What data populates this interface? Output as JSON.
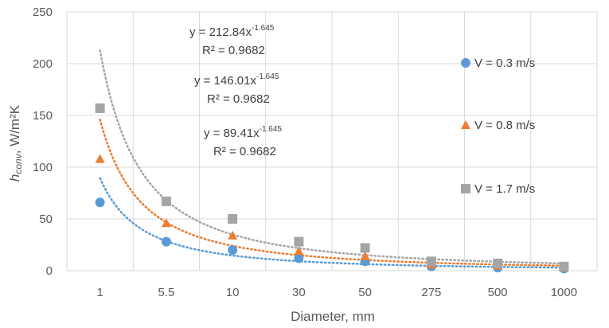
{
  "chart_data": {
    "type": "scatter",
    "title": "",
    "xlabel": "Diameter, mm",
    "ylabel": {
      "main": "h",
      "sub": "conv",
      "rest": ", W/m²K"
    },
    "categories": [
      "1",
      "5.5",
      "10",
      "30",
      "50",
      "275",
      "500",
      "1000"
    ],
    "ylim": [
      0,
      250
    ],
    "yticks": [
      0,
      50,
      100,
      150,
      200,
      250
    ],
    "grid": true,
    "legend_position": "right",
    "series": [
      {
        "name": "V = 0.3 m/s",
        "marker": "circle",
        "color": "#5B9BD5",
        "values": [
          66,
          28,
          20,
          12,
          9,
          4,
          3,
          2
        ],
        "trend": {
          "coef": 89.41,
          "exp": -1.645,
          "equation": "y = 89.41x",
          "exponent": "-1.645",
          "r2": "R² = 0.9682"
        }
      },
      {
        "name": "V = 0.8 m/s",
        "marker": "triangle",
        "color": "#ED7D31",
        "values": [
          108,
          46,
          34,
          19,
          14,
          6,
          5,
          3
        ],
        "trend": {
          "coef": 146.01,
          "exp": -1.645,
          "equation": "y = 146.01x",
          "exponent": "-1.645",
          "r2": "R² = 0.9682"
        }
      },
      {
        "name": "V = 1.7 m/s",
        "marker": "square",
        "color": "#A5A5A5",
        "values": [
          157,
          67,
          50,
          28,
          22,
          9,
          7,
          4
        ],
        "trend": {
          "coef": 212.84,
          "exp": -1.645,
          "equation": "y = 212.84x",
          "exponent": "-1.645",
          "r2": "R² = 0.9682"
        }
      }
    ]
  }
}
